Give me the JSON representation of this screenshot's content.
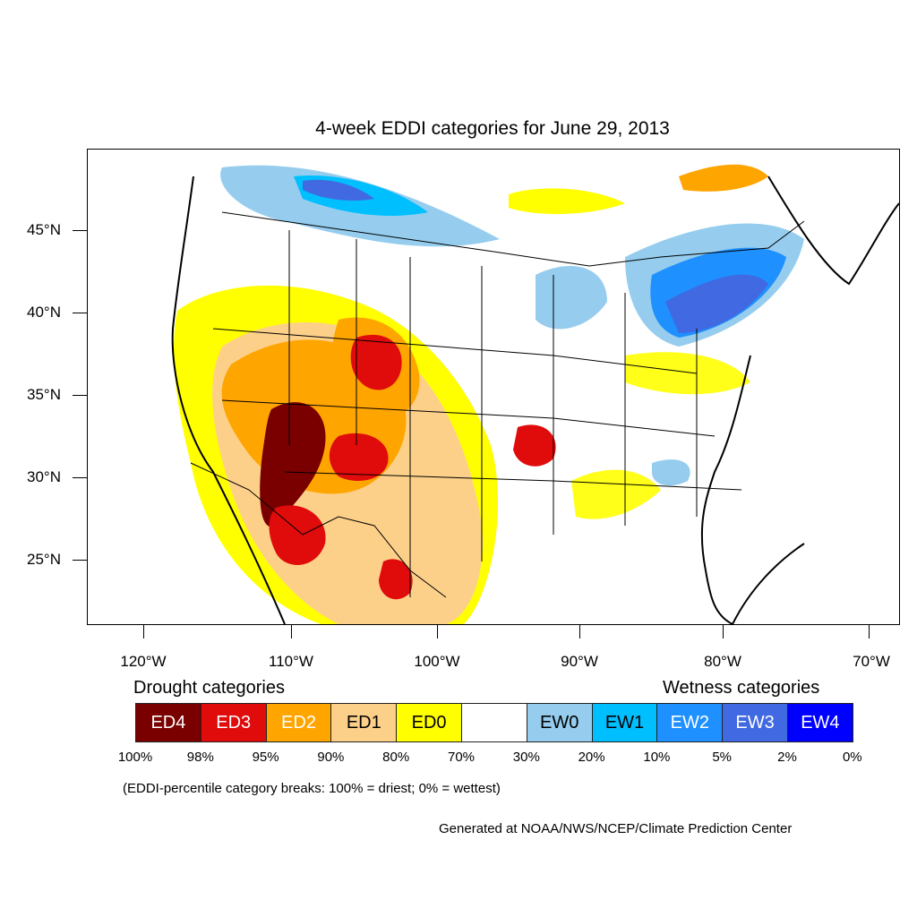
{
  "title": "4-week EDDI categories for June 29, 2013",
  "latitude_labels": [
    "45°N",
    "40°N",
    "35°N",
    "30°N",
    "25°N"
  ],
  "longitude_labels": [
    "120°W",
    "110°W",
    "100°W",
    "90°W",
    "80°W",
    "70°W"
  ],
  "legend": {
    "drought_heading": "Drought categories",
    "wetness_heading": "Wetness categories",
    "categories": [
      {
        "label": "ED4",
        "color": "#7a0000",
        "text_color": "#ffffff"
      },
      {
        "label": "ED3",
        "color": "#e00b0b",
        "text_color": "#ffffff"
      },
      {
        "label": "ED2",
        "color": "#ffa500",
        "text_color": "#ffffff"
      },
      {
        "label": "ED1",
        "color": "#fdd08a",
        "text_color": "#000000"
      },
      {
        "label": "ED0",
        "color": "#ffff00",
        "text_color": "#000000"
      },
      {
        "label": "",
        "color": "#ffffff",
        "text_color": "#000000"
      },
      {
        "label": "EW0",
        "color": "#96cdee",
        "text_color": "#000000"
      },
      {
        "label": "EW1",
        "color": "#00bfff",
        "text_color": "#000000"
      },
      {
        "label": "EW2",
        "color": "#1e90ff",
        "text_color": "#ffffff"
      },
      {
        "label": "EW3",
        "color": "#4169e1",
        "text_color": "#ffffff"
      },
      {
        "label": "EW4",
        "color": "#0000ff",
        "text_color": "#ffffff"
      }
    ],
    "percentiles": [
      "100%",
      "98%",
      "95%",
      "90%",
      "80%",
      "70%",
      "30%",
      "20%",
      "10%",
      "5%",
      "2%",
      "0%"
    ]
  },
  "note": "(EDDI-percentile category breaks: 100% = driest; 0% = wettest)",
  "credit": "Generated at NOAA/NWS/NCEP/Climate Prediction Center"
}
